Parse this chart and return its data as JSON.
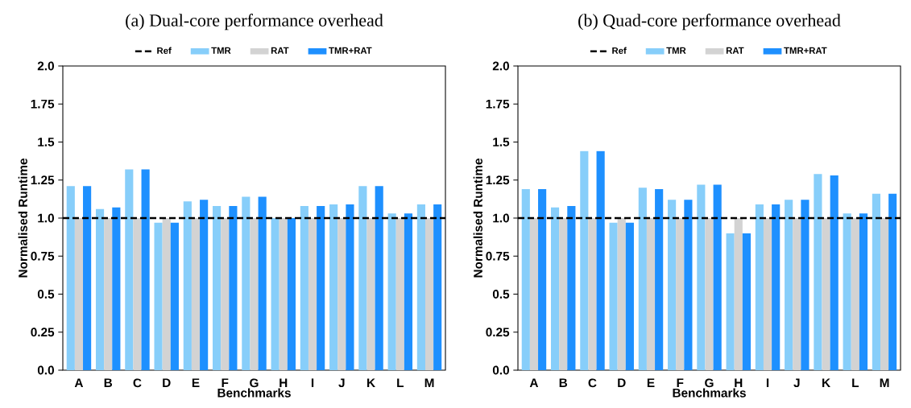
{
  "chart_data": [
    {
      "type": "bar",
      "title": "(a)  Dual-core performance overhead",
      "xlabel": "Benchmarks",
      "ylabel": "Normalised Runtime",
      "legend": "top",
      "categories": [
        "A",
        "B",
        "C",
        "D",
        "E",
        "F",
        "G",
        "H",
        "I",
        "J",
        "K",
        "L",
        "M"
      ],
      "series": [
        {
          "name": "TMR",
          "color": "#87cefa",
          "values": [
            1.21,
            1.06,
            1.32,
            0.97,
            1.11,
            1.08,
            1.14,
            1.0,
            1.08,
            1.09,
            1.21,
            1.03,
            1.09
          ]
        },
        {
          "name": "RAT",
          "color": "#d3d3d3",
          "values": [
            1.0,
            1.0,
            1.0,
            1.0,
            1.0,
            1.0,
            1.0,
            1.0,
            1.0,
            1.0,
            1.0,
            1.0,
            1.0
          ]
        },
        {
          "name": "TMR+RAT",
          "color": "#1e90ff",
          "values": [
            1.21,
            1.07,
            1.32,
            0.97,
            1.12,
            1.08,
            1.14,
            1.0,
            1.08,
            1.09,
            1.21,
            1.03,
            1.09
          ]
        }
      ],
      "ylim": [
        0,
        2
      ],
      "yticks": [
        {
          "value": 0,
          "label": "0.0"
        },
        {
          "value": 0.25,
          "label": "0.25"
        },
        {
          "value": 0.5,
          "label": "0.5"
        },
        {
          "value": 0.75,
          "label": "0.75"
        },
        {
          "value": 1,
          "label": "1.0"
        },
        {
          "value": 1.25,
          "label": "1.25"
        },
        {
          "value": 1.5,
          "label": "1.5"
        },
        {
          "value": 1.75,
          "label": "1.75"
        },
        {
          "value": 2,
          "label": "2.0"
        }
      ],
      "ref_lines": [
        {
          "axis": "y",
          "value": 1.0,
          "label": "Ref",
          "color": "#000000",
          "line_style": "dashed"
        }
      ]
    },
    {
      "type": "bar",
      "title": "(b)  Quad-core performance overhead",
      "xlabel": "Benchmarks",
      "ylabel": "Normalised Runtime",
      "legend": "top",
      "categories": [
        "A",
        "B",
        "C",
        "D",
        "E",
        "F",
        "G",
        "H",
        "I",
        "J",
        "K",
        "L",
        "M"
      ],
      "series": [
        {
          "name": "TMR",
          "color": "#87cefa",
          "values": [
            1.19,
            1.07,
            1.44,
            0.97,
            1.2,
            1.12,
            1.22,
            0.9,
            1.09,
            1.12,
            1.29,
            1.03,
            1.16
          ]
        },
        {
          "name": "RAT",
          "color": "#d3d3d3",
          "values": [
            1.0,
            1.0,
            1.0,
            1.0,
            1.0,
            1.0,
            1.0,
            1.0,
            1.0,
            1.0,
            1.0,
            1.0,
            1.0
          ]
        },
        {
          "name": "TMR+RAT",
          "color": "#1e90ff",
          "values": [
            1.19,
            1.08,
            1.44,
            0.97,
            1.19,
            1.12,
            1.22,
            0.9,
            1.09,
            1.12,
            1.28,
            1.03,
            1.16
          ]
        }
      ],
      "ylim": [
        0,
        2
      ],
      "yticks": [
        {
          "value": 0,
          "label": "0.0"
        },
        {
          "value": 0.25,
          "label": "0.25"
        },
        {
          "value": 0.5,
          "label": "0.5"
        },
        {
          "value": 0.75,
          "label": "0.75"
        },
        {
          "value": 1,
          "label": "1.0"
        },
        {
          "value": 1.25,
          "label": "1.25"
        },
        {
          "value": 1.5,
          "label": "1.5"
        },
        {
          "value": 1.75,
          "label": "1.75"
        },
        {
          "value": 2,
          "label": "2.0"
        }
      ],
      "ref_lines": [
        {
          "axis": "y",
          "value": 1.0,
          "label": "Ref",
          "color": "#000000",
          "line_style": "dashed"
        }
      ]
    }
  ]
}
